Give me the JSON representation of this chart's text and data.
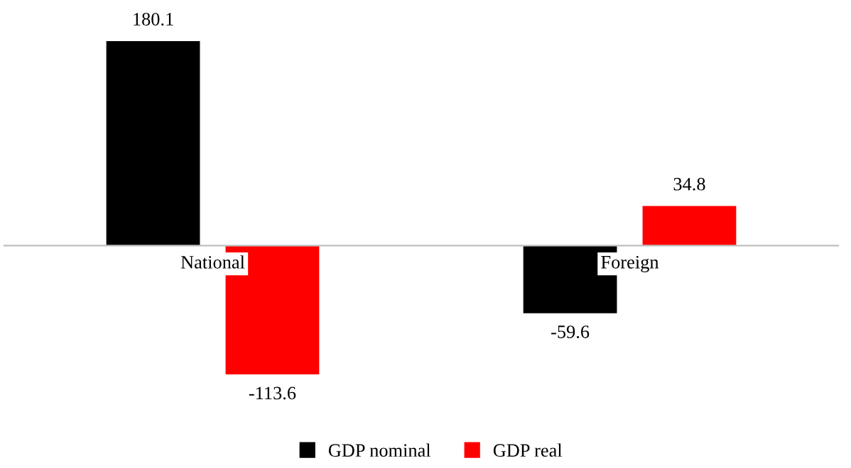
{
  "chart_data": {
    "type": "bar",
    "categories": [
      "National",
      "Foreign"
    ],
    "series": [
      {
        "name": "GDP nominal",
        "color": "#000000",
        "values": [
          180.1,
          -59.6
        ]
      },
      {
        "name": "GDP real",
        "color": "#ff0000",
        "values": [
          -113.6,
          34.8
        ]
      }
    ],
    "data_labels": true,
    "legend": "bottom"
  }
}
